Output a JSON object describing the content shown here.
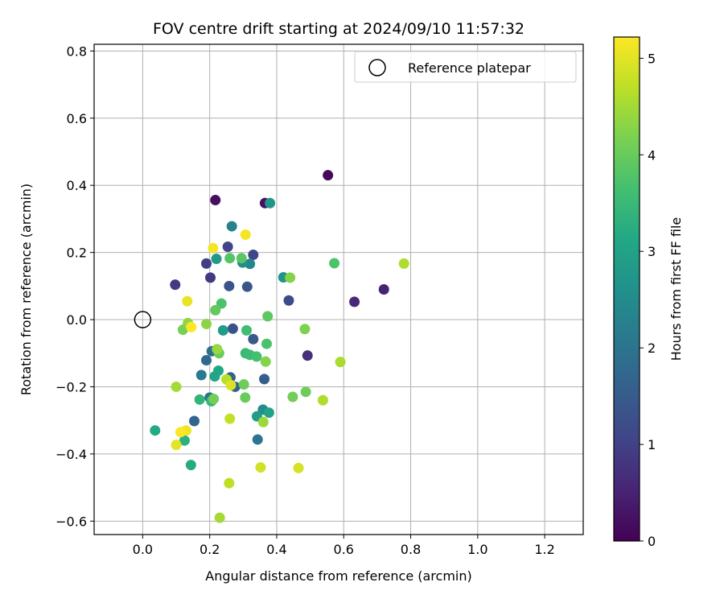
{
  "chart_data": {
    "type": "scatter",
    "title": "FOV centre drift starting at 2024/09/10 11:57:32",
    "xlabel": "Angular distance from reference (arcmin)",
    "ylabel": "Rotation from reference (arcmin)",
    "xlim": [
      -0.145,
      1.315
    ],
    "ylim": [
      -0.64,
      0.82
    ],
    "x_ticks": [
      0.0,
      0.2,
      0.4,
      0.6,
      0.8,
      1.0,
      1.2
    ],
    "x_tick_labels": [
      "0.0",
      "0.2",
      "0.4",
      "0.6",
      "0.8",
      "1.0",
      "1.2"
    ],
    "y_ticks": [
      -0.6,
      -0.4,
      -0.2,
      0.0,
      0.2,
      0.4,
      0.6,
      0.8
    ],
    "y_tick_labels": [
      "−0.6",
      "−0.4",
      "−0.2",
      "0.0",
      "0.2",
      "0.4",
      "0.6",
      "0.8"
    ],
    "grid": true,
    "legend": {
      "placement": "top-right",
      "entries": [
        "Reference platepar"
      ]
    },
    "reference_point": {
      "x": 0.0,
      "y": 0.0
    },
    "colorbar": {
      "label": "Hours from first FF file",
      "range": [
        0,
        5.22
      ],
      "ticks": [
        0,
        1,
        2,
        3,
        4,
        5
      ],
      "tick_labels": [
        "0",
        "1",
        "2",
        "3",
        "4",
        "5"
      ],
      "colormap": "viridis"
    },
    "points": [
      {
        "x": 0.553,
        "y": 0.43,
        "t": 0.1
      },
      {
        "x": 0.217,
        "y": 0.356,
        "t": 0.2
      },
      {
        "x": 0.365,
        "y": 0.347,
        "t": 0.25
      },
      {
        "x": 0.72,
        "y": 0.09,
        "t": 0.5
      },
      {
        "x": 0.632,
        "y": 0.053,
        "t": 0.6
      },
      {
        "x": 0.492,
        "y": -0.107,
        "t": 0.7
      },
      {
        "x": 0.097,
        "y": 0.104,
        "t": 0.85
      },
      {
        "x": 0.202,
        "y": 0.125,
        "t": 0.9
      },
      {
        "x": 0.19,
        "y": 0.167,
        "t": 0.95
      },
      {
        "x": 0.254,
        "y": 0.217,
        "t": 1.05
      },
      {
        "x": 0.33,
        "y": 0.193,
        "t": 1.1
      },
      {
        "x": 0.436,
        "y": 0.057,
        "t": 1.2
      },
      {
        "x": 0.269,
        "y": -0.027,
        "t": 1.3
      },
      {
        "x": 0.258,
        "y": 0.1,
        "t": 1.35
      },
      {
        "x": 0.312,
        "y": 0.098,
        "t": 1.4
      },
      {
        "x": 0.33,
        "y": -0.058,
        "t": 1.45
      },
      {
        "x": 0.363,
        "y": -0.177,
        "t": 1.55
      },
      {
        "x": 0.262,
        "y": -0.172,
        "t": 1.6
      },
      {
        "x": 0.276,
        "y": -0.2,
        "t": 1.65
      },
      {
        "x": 0.154,
        "y": -0.302,
        "t": 1.7
      },
      {
        "x": 0.19,
        "y": -0.121,
        "t": 1.8
      },
      {
        "x": 0.206,
        "y": -0.094,
        "t": 1.9
      },
      {
        "x": 0.2,
        "y": -0.232,
        "t": 2.0
      },
      {
        "x": 0.343,
        "y": -0.357,
        "t": 2.05
      },
      {
        "x": 0.175,
        "y": -0.165,
        "t": 2.1
      },
      {
        "x": 0.266,
        "y": 0.278,
        "t": 2.3
      },
      {
        "x": 0.32,
        "y": 0.166,
        "t": 2.4
      },
      {
        "x": 0.298,
        "y": 0.17,
        "t": 2.5
      },
      {
        "x": 0.359,
        "y": -0.268,
        "t": 2.5
      },
      {
        "x": 0.42,
        "y": 0.126,
        "t": 2.7
      },
      {
        "x": 0.38,
        "y": 0.347,
        "t": 2.75
      },
      {
        "x": 0.22,
        "y": 0.181,
        "t": 2.8
      },
      {
        "x": 0.24,
        "y": -0.032,
        "t": 2.85
      },
      {
        "x": 0.341,
        "y": -0.288,
        "t": 2.9
      },
      {
        "x": 0.377,
        "y": -0.277,
        "t": 3.0
      },
      {
        "x": 0.215,
        "y": -0.169,
        "t": 3.05
      },
      {
        "x": 0.226,
        "y": -0.152,
        "t": 3.1
      },
      {
        "x": 0.037,
        "y": -0.33,
        "t": 3.15
      },
      {
        "x": 0.144,
        "y": -0.433,
        "t": 3.2
      },
      {
        "x": 0.125,
        "y": -0.36,
        "t": 3.3
      },
      {
        "x": 0.17,
        "y": -0.238,
        "t": 3.4
      },
      {
        "x": 0.205,
        "y": -0.243,
        "t": 3.45
      },
      {
        "x": 0.307,
        "y": -0.1,
        "t": 3.5
      },
      {
        "x": 0.32,
        "y": -0.105,
        "t": 3.55
      },
      {
        "x": 0.31,
        "y": -0.032,
        "t": 3.6
      },
      {
        "x": 0.34,
        "y": -0.11,
        "t": 3.65
      },
      {
        "x": 0.37,
        "y": -0.072,
        "t": 3.7
      },
      {
        "x": 0.235,
        "y": 0.048,
        "t": 3.75
      },
      {
        "x": 0.572,
        "y": 0.168,
        "t": 3.75
      },
      {
        "x": 0.26,
        "y": 0.183,
        "t": 3.8
      },
      {
        "x": 0.295,
        "y": 0.183,
        "t": 3.85
      },
      {
        "x": 0.373,
        "y": 0.01,
        "t": 3.9
      },
      {
        "x": 0.217,
        "y": 0.028,
        "t": 3.95
      },
      {
        "x": 0.228,
        "y": -0.1,
        "t": 4.0
      },
      {
        "x": 0.306,
        "y": -0.232,
        "t": 4.0
      },
      {
        "x": 0.302,
        "y": -0.193,
        "t": 4.05
      },
      {
        "x": 0.487,
        "y": -0.215,
        "t": 4.05
      },
      {
        "x": 0.448,
        "y": -0.23,
        "t": 4.1
      },
      {
        "x": 0.212,
        "y": -0.236,
        "t": 4.1
      },
      {
        "x": 0.12,
        "y": -0.03,
        "t": 4.15
      },
      {
        "x": 0.484,
        "y": -0.028,
        "t": 4.2
      },
      {
        "x": 0.367,
        "y": -0.125,
        "t": 4.25
      },
      {
        "x": 0.44,
        "y": 0.125,
        "t": 4.25
      },
      {
        "x": 0.19,
        "y": -0.013,
        "t": 4.3
      },
      {
        "x": 0.135,
        "y": -0.01,
        "t": 4.35
      },
      {
        "x": 0.222,
        "y": -0.088,
        "t": 4.4
      },
      {
        "x": 0.36,
        "y": -0.305,
        "t": 4.45
      },
      {
        "x": 0.23,
        "y": -0.59,
        "t": 4.5
      },
      {
        "x": 0.1,
        "y": -0.2,
        "t": 4.5
      },
      {
        "x": 0.59,
        "y": -0.126,
        "t": 4.55
      },
      {
        "x": 0.538,
        "y": -0.24,
        "t": 4.6
      },
      {
        "x": 0.78,
        "y": 0.167,
        "t": 4.6
      },
      {
        "x": 0.25,
        "y": -0.178,
        "t": 4.65
      },
      {
        "x": 0.258,
        "y": -0.487,
        "t": 4.7
      },
      {
        "x": 0.26,
        "y": -0.295,
        "t": 4.75
      },
      {
        "x": 0.352,
        "y": -0.44,
        "t": 4.85
      },
      {
        "x": 0.465,
        "y": -0.442,
        "t": 4.9
      },
      {
        "x": 0.263,
        "y": -0.195,
        "t": 4.95
      },
      {
        "x": 0.1,
        "y": -0.373,
        "t": 5.0
      },
      {
        "x": 0.133,
        "y": 0.055,
        "t": 5.05
      },
      {
        "x": 0.13,
        "y": -0.33,
        "t": 5.1
      },
      {
        "x": 0.307,
        "y": 0.253,
        "t": 5.15
      },
      {
        "x": 0.21,
        "y": 0.213,
        "t": 5.15
      },
      {
        "x": 0.145,
        "y": -0.022,
        "t": 5.2
      },
      {
        "x": 0.113,
        "y": -0.335,
        "t": 5.2
      }
    ]
  }
}
